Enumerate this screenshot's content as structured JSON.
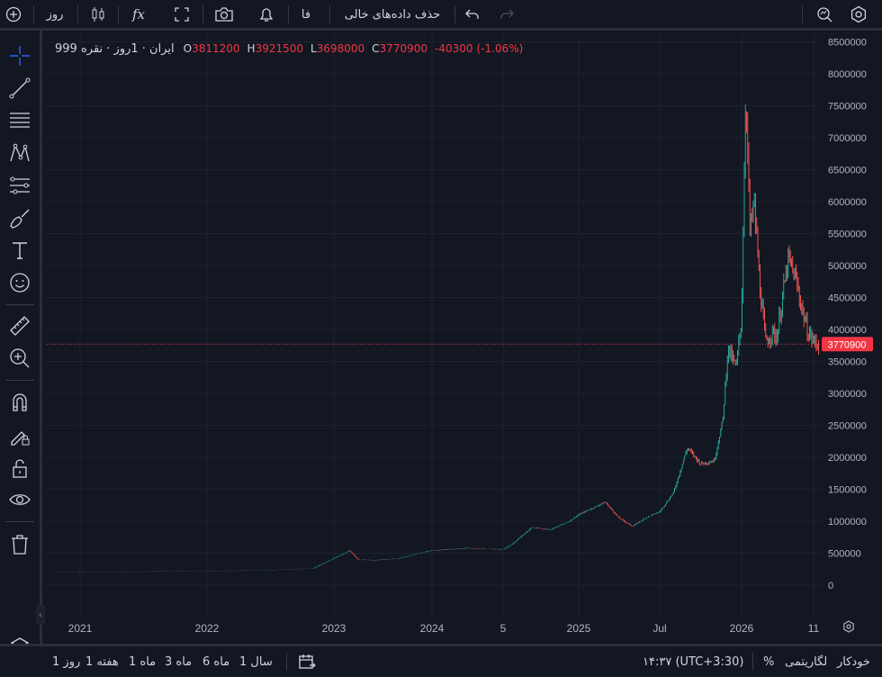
{
  "toolbar": {
    "interval": "روز",
    "indicators_label": "fx",
    "language": "فا",
    "clear_empty_data": "حذف داده‌های خالی"
  },
  "legend": {
    "symbol": "ایران · 1روز · نقره 999",
    "open_key": "O",
    "open": "3811200",
    "high_key": "H",
    "high": "3921500",
    "low_key": "L",
    "low": "3698000",
    "close_key": "C",
    "close": "3770900",
    "change": "-40300",
    "change_pct": "(-1.06%)"
  },
  "price_tag": "3770900",
  "bottom": {
    "ranges": [
      "روز 1",
      "هفته 1",
      "ماه 1",
      "ماه 3",
      "ماه 6",
      "سال 1"
    ],
    "time": "۱۴:۳۷ (UTC+3:30)",
    "percent": "%",
    "log": "لگاریتمی",
    "auto": "خودکار"
  },
  "colors": {
    "background": "#131722",
    "up": "#26a69a",
    "down": "#ef5350",
    "grid": "#1e222d",
    "price_tag_bg": "#f23645"
  },
  "chart_data": {
    "type": "line",
    "title": "",
    "xlabel": "",
    "ylabel": "",
    "ylim": [
      -400000,
      8600000
    ],
    "grid": true,
    "y_ticks": [
      0,
      500000,
      1000000,
      1500000,
      2000000,
      2500000,
      3000000,
      3500000,
      4000000,
      4500000,
      5000000,
      5500000,
      6000000,
      6500000,
      7000000,
      7500000,
      8000000,
      8500000
    ],
    "x_ticks": [
      "2021",
      "2022",
      "2023",
      "2024",
      "5",
      "2025",
      "Jul",
      "2026",
      "11"
    ],
    "current_price": 3770900,
    "series": [
      {
        "x": [
          "2020-12",
          "2021-06",
          "2021-12",
          "2022-06",
          "2022-11",
          "2023-01",
          "2023-03",
          "2023-04",
          "2023-06",
          "2023-09",
          "2023-12",
          "2024-03",
          "2024-05",
          "2024-06",
          "2024-08",
          "2024-10",
          "2024-12",
          "2025-03",
          "2025-04",
          "2025-05",
          "2025-06",
          "2025-07",
          "2025-08",
          "2025-09",
          "2025-10",
          "2025-11",
          "2025-11-20",
          "2025-12",
          "2025-12-20",
          "2026-01-01",
          "2026-01-08",
          "2026-01-15",
          "2026-01-22",
          "2026-02-01",
          "2026-02-10",
          "2026-02-20",
          "2026-03-01",
          "2026-03-10",
          "2026-03-20",
          "2026-04-01",
          "2026-04-10",
          "2026-04-20",
          "2026-05-01",
          "2026-05-10"
        ],
        "values": [
          200000,
          210000,
          220000,
          230000,
          260000,
          420000,
          540000,
          400000,
          390000,
          420000,
          520000,
          580000,
          560000,
          650000,
          900000,
          870000,
          1000000,
          1300000,
          1050000,
          920000,
          1060000,
          1150000,
          1450000,
          2150000,
          1900000,
          1950000,
          2600000,
          3700000,
          3400000,
          4200000,
          7800000,
          5500000,
          6000000,
          4600000,
          3800000,
          3950000,
          3900000,
          4500000,
          5100000,
          4800000,
          4400000,
          4000000,
          3811200,
          3770900
        ]
      }
    ]
  }
}
